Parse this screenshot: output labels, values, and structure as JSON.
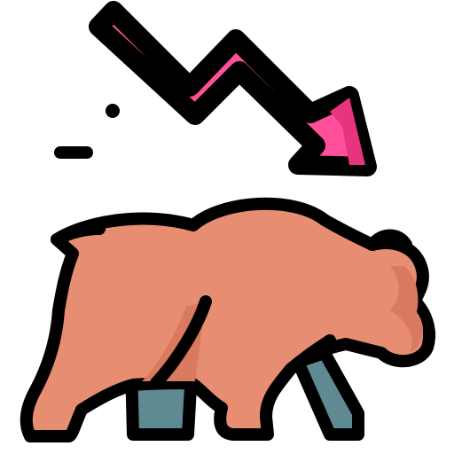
{
  "icon": {
    "name": "bear-market-icon",
    "parts": [
      "downward-trend-arrow-icon",
      "bear-icon",
      "motion-dot-icon",
      "motion-dash-icon"
    ]
  },
  "colors": {
    "outline": "#000000",
    "arrow_fill": "#ff4f9a",
    "arrow_shade": "#e8337f",
    "bear_fill": "#e68d72",
    "bear_shade": "#d9795e",
    "back_legs": "#5f8a91",
    "back_legs_shade": "#4f767c",
    "background": "#ffffff"
  }
}
